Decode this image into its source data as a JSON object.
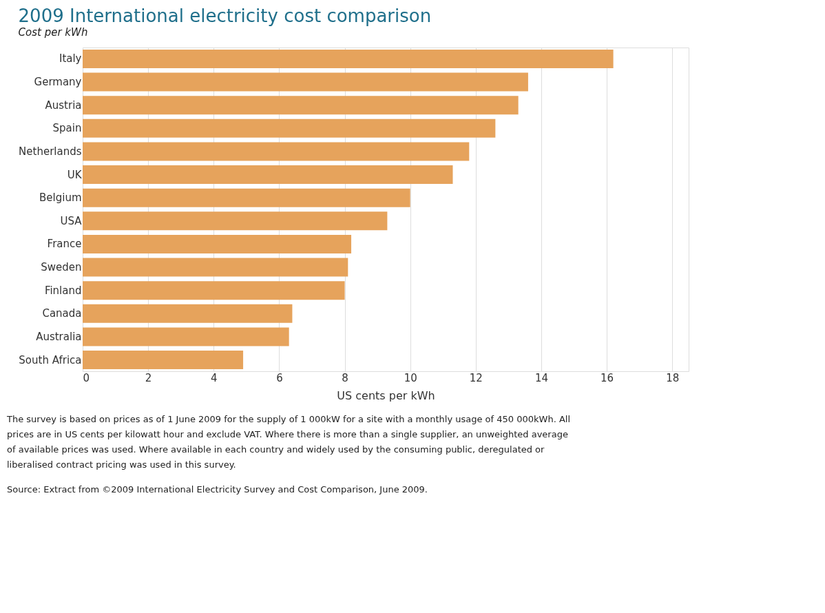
{
  "chart_data": {
    "type": "bar",
    "orientation": "horizontal",
    "title": "2009 International electricity cost comparison",
    "subtitle": "Cost per kWh",
    "xlabel": "US cents per kWh",
    "categories": [
      "Italy",
      "Germany",
      "Austria",
      "Spain",
      "Netherlands",
      "UK",
      "Belgium",
      "USA",
      "France",
      "Sweden",
      "Finland",
      "Canada",
      "Australia",
      "South Africa"
    ],
    "values": [
      16.2,
      13.6,
      13.3,
      12.6,
      11.8,
      11.3,
      10.0,
      9.3,
      8.2,
      8.1,
      8.0,
      6.4,
      6.3,
      4.9
    ],
    "color": "#e6a35c",
    "xlim": [
      0,
      18.5
    ],
    "xticks": [
      0,
      2,
      4,
      6,
      8,
      10,
      12,
      14,
      16,
      18
    ],
    "grid": "x",
    "annotations": [
      "The survey is based on prices as of 1 June 2009 for the supply of 1 000kW for a site with a monthly usage of 450 000kWh.  All prices are in US cents per kilowatt hour and exclude VAT.  Where there is more than a single supplier, an unweighted average of available prices was used.  Where available in each country and widely used by the consuming public, deregulated or liberalised contract pricing was used in this survey.",
      "Source: Extract from ©2009 International Electricity Survey and Cost Comparison, June 2009."
    ]
  }
}
